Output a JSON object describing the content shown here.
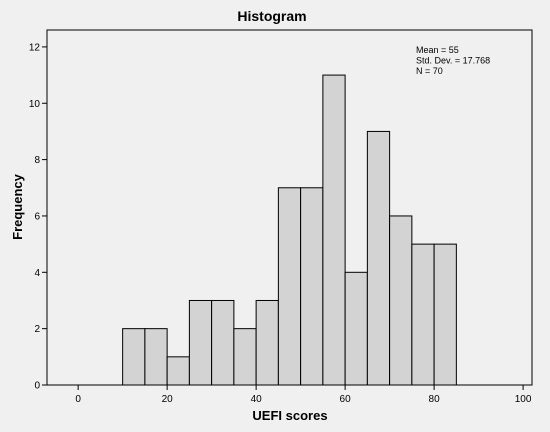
{
  "chart_data": {
    "type": "bar",
    "title": "Histogram",
    "xlabel": "UEFI scores",
    "ylabel": "Frequency",
    "xlim": [
      -7,
      102
    ],
    "ylim": [
      0,
      12.6
    ],
    "xticks": [
      0,
      20,
      40,
      60,
      80,
      100
    ],
    "yticks": [
      0,
      2,
      4,
      6,
      8,
      10,
      12
    ],
    "bin_width": 5,
    "bins": [
      {
        "start": 10,
        "end": 15,
        "count": 2
      },
      {
        "start": 15,
        "end": 20,
        "count": 2
      },
      {
        "start": 20,
        "end": 25,
        "count": 1
      },
      {
        "start": 25,
        "end": 30,
        "count": 3
      },
      {
        "start": 30,
        "end": 35,
        "count": 3
      },
      {
        "start": 35,
        "end": 40,
        "count": 2
      },
      {
        "start": 40,
        "end": 45,
        "count": 3
      },
      {
        "start": 45,
        "end": 50,
        "count": 7
      },
      {
        "start": 50,
        "end": 55,
        "count": 7
      },
      {
        "start": 55,
        "end": 60,
        "count": 11
      },
      {
        "start": 60,
        "end": 65,
        "count": 4
      },
      {
        "start": 65,
        "end": 70,
        "count": 9
      },
      {
        "start": 70,
        "end": 75,
        "count": 6
      },
      {
        "start": 75,
        "end": 80,
        "count": 5
      },
      {
        "start": 80,
        "end": 85,
        "count": 5
      }
    ],
    "stats": [
      "Mean = 55",
      "Std. Dev. = 17.768",
      "N = 70"
    ],
    "grid": false,
    "colors": {
      "bar_fill": "#d3d3d3",
      "bar_stroke": "#000000",
      "plot_bg": "#f0f0f0",
      "frame": "#000000"
    }
  }
}
